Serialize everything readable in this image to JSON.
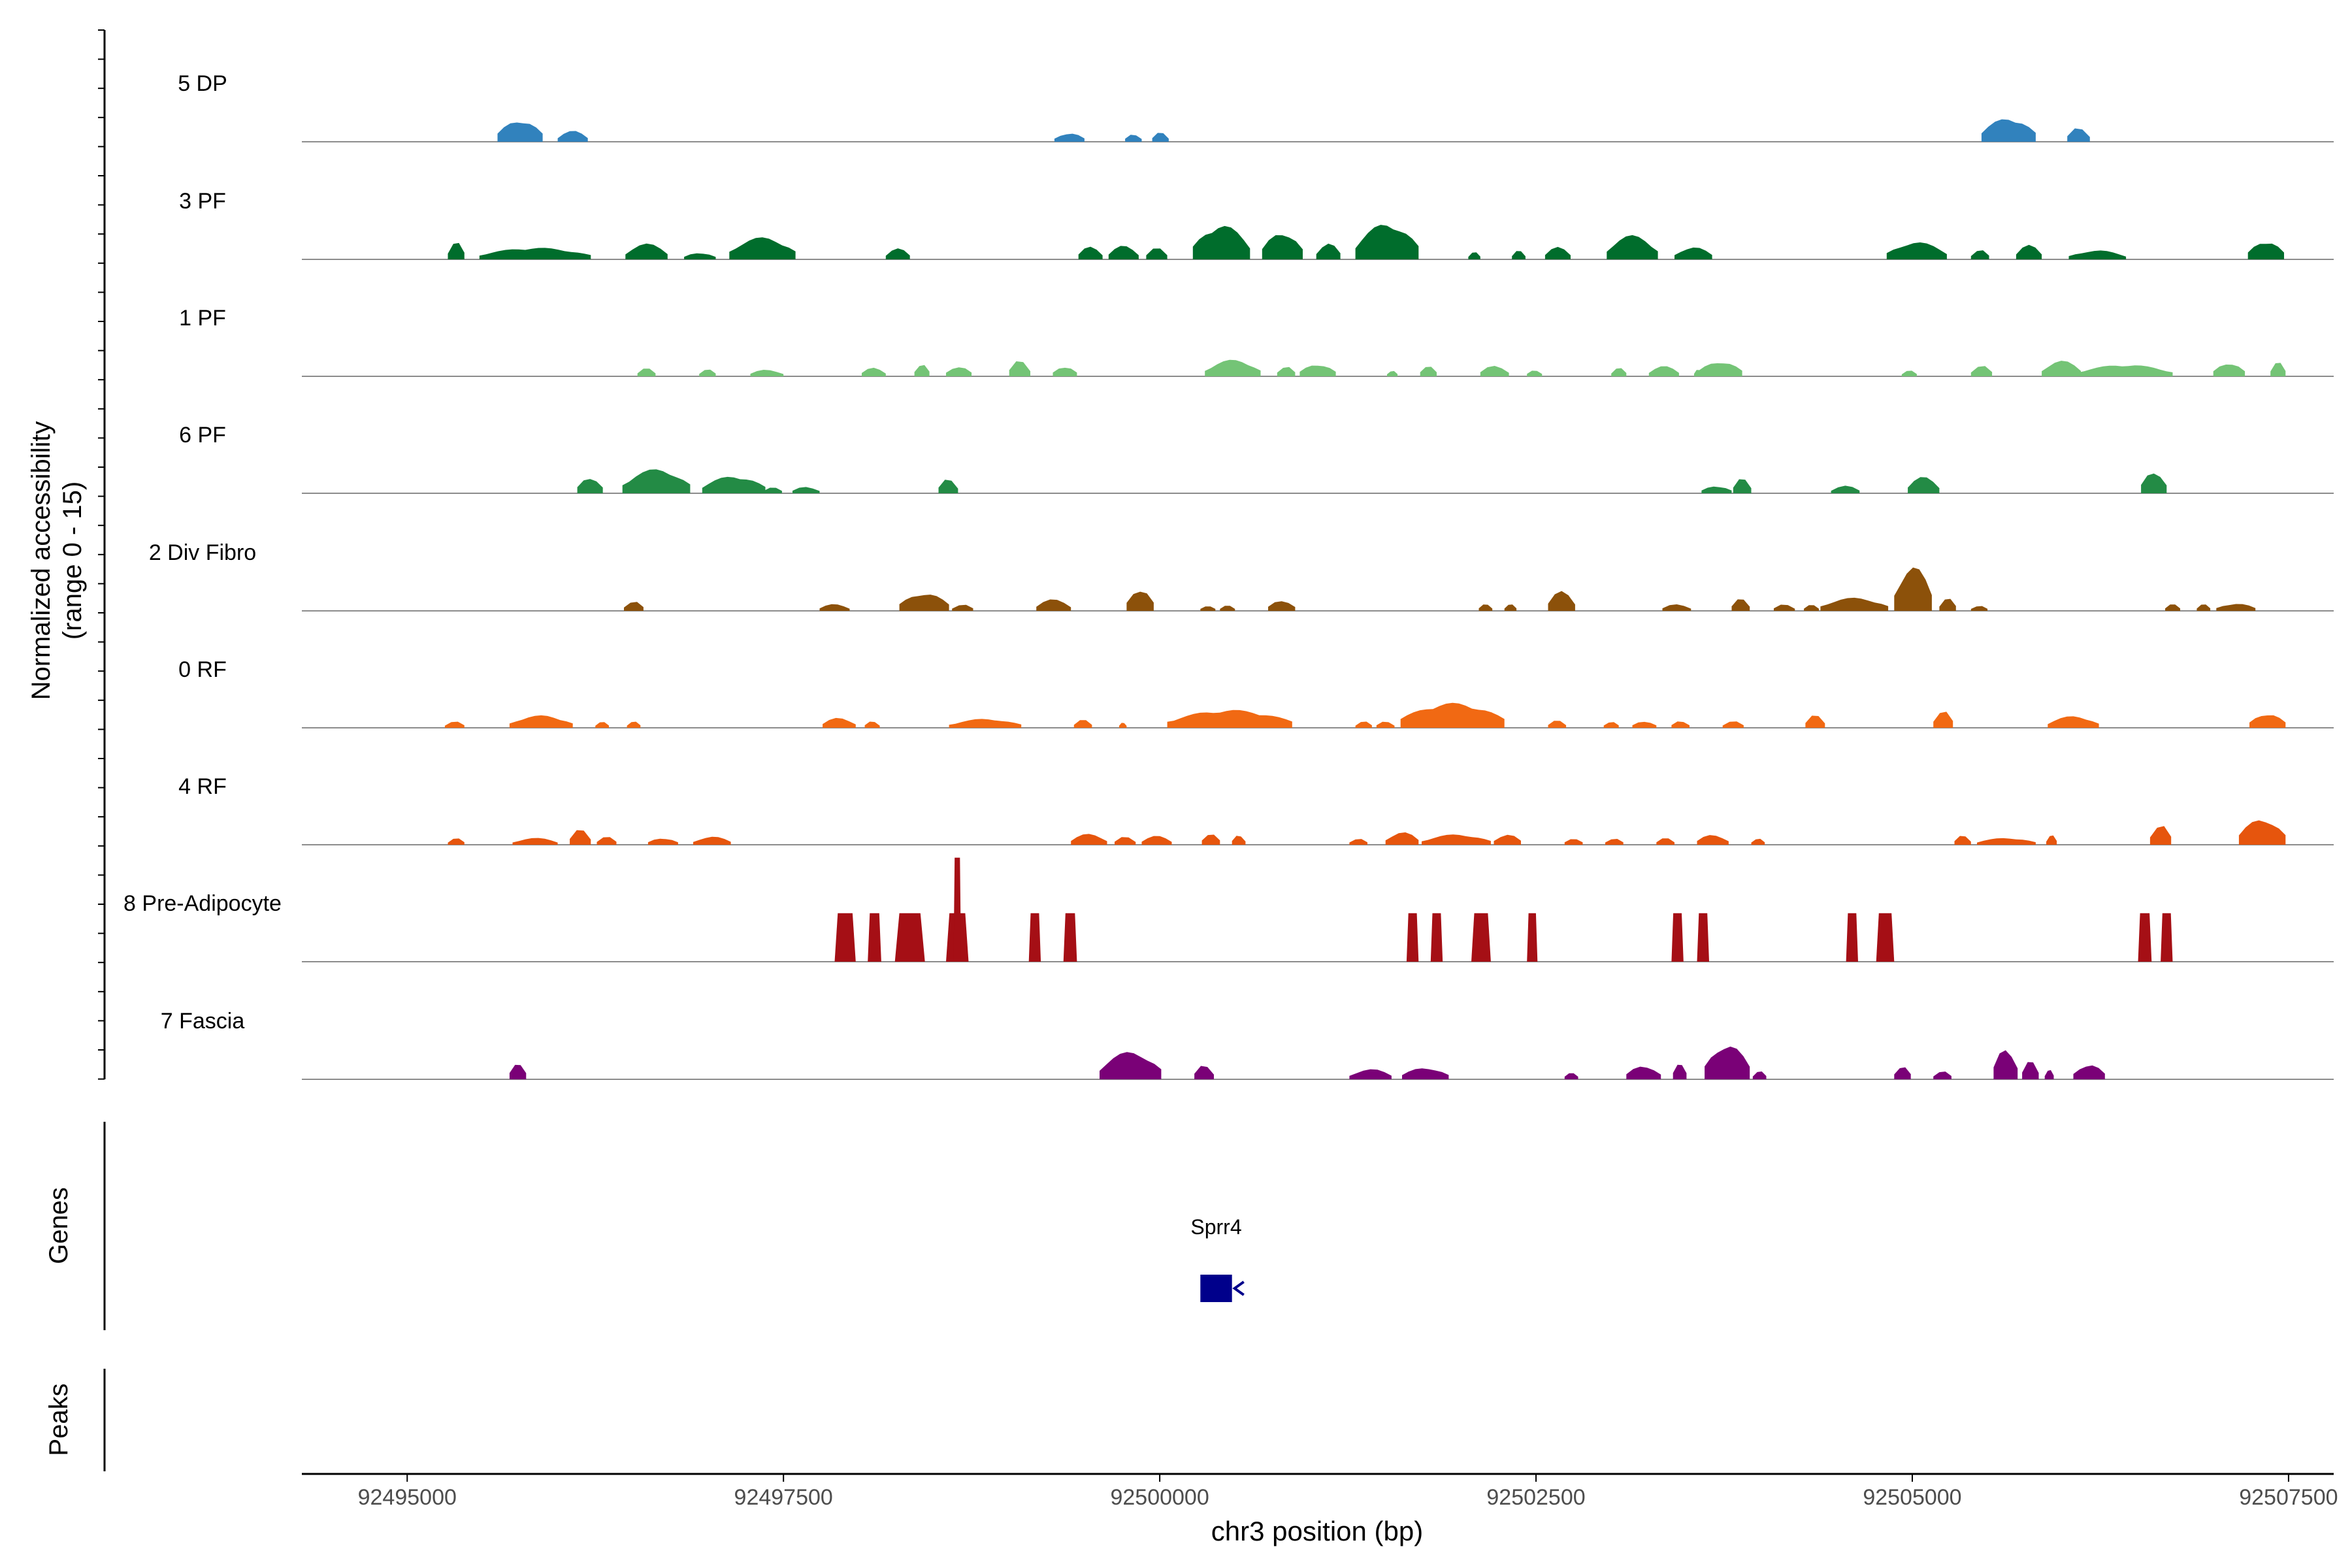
{
  "chart_data": {
    "type": "area",
    "title": "",
    "ylabel_line1": "Normalized accessibility",
    "ylabel_line2": "(range 0 - 15)",
    "xlabel": "chr3 position (bp)",
    "ylim": [
      0,
      15
    ],
    "xlim": [
      92494300,
      92507800
    ],
    "x_ticks": [
      92495000,
      92497500,
      92500000,
      92502500,
      92505000,
      92507500
    ],
    "x_tick_labels": [
      "92495000",
      "92497500",
      "92500000",
      "92502500",
      "92505000",
      "92507500"
    ],
    "genes_label": "Genes",
    "peaks_label": "Peaks",
    "genes": [
      {
        "name": "Sprr4",
        "start": 92500270,
        "end": 92500480,
        "strand": "-",
        "color": "#00008b"
      }
    ],
    "series": [
      {
        "name": "5 DP",
        "color": "#3182bd",
        "peaks": [
          [
            92495600,
            92495900,
            3.2
          ],
          [
            92496000,
            92496200,
            1.6
          ],
          [
            92499300,
            92499500,
            1.3
          ],
          [
            92499770,
            92499880,
            1.2
          ],
          [
            92499950,
            92500060,
            1.4
          ],
          [
            92505460,
            92505820,
            3.5
          ],
          [
            92506030,
            92506180,
            2.2
          ]
        ]
      },
      {
        "name": "3 PF",
        "color": "#006d2c",
        "peaks": [
          [
            92495270,
            92495380,
            2.6
          ],
          [
            92495480,
            92496220,
            1.7
          ],
          [
            92496450,
            92496730,
            2.3
          ],
          [
            92496840,
            92497050,
            1.0
          ],
          [
            92497140,
            92497580,
            3.2
          ],
          [
            92498180,
            92498340,
            1.6
          ],
          [
            92499460,
            92499620,
            1.9
          ],
          [
            92499660,
            92499860,
            2.0
          ],
          [
            92499910,
            92500050,
            1.7
          ],
          [
            92500220,
            92500600,
            5.0
          ],
          [
            92500680,
            92500950,
            4.0
          ],
          [
            92501040,
            92501200,
            2.4
          ],
          [
            92501300,
            92501720,
            5.2
          ],
          [
            92502050,
            92502130,
            1.1
          ],
          [
            92502340,
            92502430,
            1.3
          ],
          [
            92502560,
            92502730,
            1.8
          ],
          [
            92502970,
            92503310,
            3.5
          ],
          [
            92503420,
            92503670,
            1.8
          ],
          [
            92504830,
            92505230,
            2.5
          ],
          [
            92505390,
            92505510,
            1.5
          ],
          [
            92505690,
            92505860,
            2.1
          ],
          [
            92506040,
            92506420,
            1.3
          ],
          [
            92507230,
            92507470,
            2.7
          ]
        ]
      },
      {
        "name": "1 PF",
        "color": "#74c476",
        "peaks": [
          [
            92496530,
            92496650,
            1.2
          ],
          [
            92496940,
            92497050,
            1.1
          ],
          [
            92497280,
            92497500,
            1.0
          ],
          [
            92498020,
            92498180,
            1.3
          ],
          [
            92498370,
            92498470,
            1.9
          ],
          [
            92498580,
            92498750,
            1.5
          ],
          [
            92499000,
            92499140,
            2.4
          ],
          [
            92499290,
            92499450,
            1.5
          ],
          [
            92500300,
            92500670,
            2.4
          ],
          [
            92500780,
            92500900,
            1.6
          ],
          [
            92500930,
            92501170,
            1.8
          ],
          [
            92501510,
            92501580,
            0.9
          ],
          [
            92501730,
            92501840,
            1.7
          ],
          [
            92502130,
            92502320,
            1.6
          ],
          [
            92502440,
            92502540,
            1.0
          ],
          [
            92503000,
            92503100,
            1.3
          ],
          [
            92503250,
            92503450,
            1.5
          ],
          [
            92503550,
            92503600,
            1.0
          ],
          [
            92503580,
            92503870,
            2.2
          ],
          [
            92504930,
            92505030,
            0.9
          ],
          [
            92505390,
            92505530,
            1.7
          ],
          [
            92505860,
            92506120,
            2.3
          ],
          [
            92506100,
            92506730,
            1.7
          ],
          [
            92507000,
            92507210,
            2.0
          ],
          [
            92507380,
            92507480,
            2.1
          ]
        ]
      },
      {
        "name": "6 PF",
        "color": "#238b45",
        "peaks": [
          [
            92496130,
            92496300,
            2.4
          ],
          [
            92496430,
            92496880,
            3.5
          ],
          [
            92496960,
            92497380,
            2.5
          ],
          [
            92497370,
            92497490,
            1.0
          ],
          [
            92497560,
            92497740,
            1.0
          ],
          [
            92498530,
            92498660,
            2.2
          ],
          [
            92503600,
            92503800,
            1.1
          ],
          [
            92503810,
            92503930,
            2.2
          ],
          [
            92504460,
            92504650,
            1.1
          ],
          [
            92504970,
            92505180,
            2.4
          ],
          [
            92506520,
            92506690,
            3.3
          ]
        ]
      },
      {
        "name": "2 Div Fibro",
        "color": "#8c510a",
        "peaks": [
          [
            92496440,
            92496570,
            1.5
          ],
          [
            92497740,
            92497940,
            1.0
          ],
          [
            92498270,
            92498600,
            2.6
          ],
          [
            92498620,
            92498760,
            1.0
          ],
          [
            92499180,
            92499410,
            1.7
          ],
          [
            92499780,
            92499960,
            3.3
          ],
          [
            92500270,
            92500370,
            0.8
          ],
          [
            92500400,
            92500500,
            0.8
          ],
          [
            92500720,
            92500900,
            1.6
          ],
          [
            92502120,
            92502210,
            1.0
          ],
          [
            92502290,
            92502370,
            1.0
          ],
          [
            92502580,
            92502760,
            2.9
          ],
          [
            92503340,
            92503530,
            1.0
          ],
          [
            92503800,
            92503920,
            1.8
          ],
          [
            92504080,
            92504220,
            1.0
          ],
          [
            92504280,
            92504380,
            0.9
          ],
          [
            92504390,
            92504840,
            1.9
          ],
          [
            92504880,
            92505130,
            6.5
          ],
          [
            92505180,
            92505290,
            1.9
          ],
          [
            92505390,
            92505500,
            0.8
          ],
          [
            92506680,
            92506780,
            1.0
          ],
          [
            92506890,
            92506980,
            1.0
          ],
          [
            92507020,
            92507280,
            1.1
          ]
        ]
      },
      {
        "name": "0 RF",
        "color": "#f16913",
        "peaks": [
          [
            92495250,
            92495380,
            1.0
          ],
          [
            92495680,
            92496100,
            1.8
          ],
          [
            92496250,
            92496340,
            0.9
          ],
          [
            92496460,
            92496550,
            1.0
          ],
          [
            92497760,
            92497980,
            1.5
          ],
          [
            92498040,
            92498140,
            1.0
          ],
          [
            92498600,
            92499080,
            1.3
          ],
          [
            92499430,
            92499550,
            1.2
          ],
          [
            92499730,
            92499780,
            0.8
          ],
          [
            92500050,
            92500880,
            2.6
          ],
          [
            92501300,
            92501410,
            1.0
          ],
          [
            92501440,
            92501560,
            1.0
          ],
          [
            92501600,
            92502290,
            3.6
          ],
          [
            92502580,
            92502700,
            1.1
          ],
          [
            92502950,
            92503050,
            1.0
          ],
          [
            92503140,
            92503300,
            1.0
          ],
          [
            92503400,
            92503520,
            1.1
          ],
          [
            92503740,
            92503880,
            1.0
          ],
          [
            92504290,
            92504420,
            1.9
          ],
          [
            92505140,
            92505270,
            2.7
          ],
          [
            92505900,
            92506240,
            1.7
          ],
          [
            92507240,
            92507480,
            2.1
          ]
        ]
      },
      {
        "name": "4 RF",
        "color": "#e6550d",
        "peaks": [
          [
            92495270,
            92495380,
            1.0
          ],
          [
            92495700,
            92496000,
            1.0
          ],
          [
            92496080,
            92496220,
            2.3
          ],
          [
            92496260,
            92496390,
            1.2
          ],
          [
            92496600,
            92496800,
            1.0
          ],
          [
            92496900,
            92497150,
            1.2
          ],
          [
            92499410,
            92499650,
            1.6
          ],
          [
            92499700,
            92499840,
            1.2
          ],
          [
            92499880,
            92500080,
            1.3
          ],
          [
            92500280,
            92500400,
            1.8
          ],
          [
            92500480,
            92500570,
            1.5
          ],
          [
            92501260,
            92501380,
            1.0
          ],
          [
            92501500,
            92501720,
            1.9
          ],
          [
            92501740,
            92502200,
            1.5
          ],
          [
            92502220,
            92502400,
            1.6
          ],
          [
            92502690,
            92502810,
            1.0
          ],
          [
            92502960,
            92503080,
            1.0
          ],
          [
            92503300,
            92503420,
            1.0
          ],
          [
            92503570,
            92503780,
            1.5
          ],
          [
            92503930,
            92504020,
            1.0
          ],
          [
            92505280,
            92505390,
            1.4
          ],
          [
            92505430,
            92505820,
            1.0
          ],
          [
            92505890,
            92505960,
            1.5
          ],
          [
            92506580,
            92506720,
            3.2
          ],
          [
            92507170,
            92507480,
            3.8
          ]
        ]
      },
      {
        "name": "8 Pre-Adipocyte",
        "color": "#a50f15",
        "shape": "bars",
        "peaks": [
          [
            92497840,
            92497980,
            7.0
          ],
          [
            92498060,
            92498150,
            7.0
          ],
          [
            92498240,
            92498440,
            7.0
          ],
          [
            92498580,
            92498730,
            7.0
          ],
          [
            92498630,
            92498680,
            15.0
          ],
          [
            92499130,
            92499210,
            7.0
          ],
          [
            92499360,
            92499450,
            7.0
          ],
          [
            92501640,
            92501720,
            7.0
          ],
          [
            92501800,
            92501880,
            7.0
          ],
          [
            92502070,
            92502200,
            7.0
          ],
          [
            92502440,
            92502510,
            7.0
          ],
          [
            92503400,
            92503480,
            7.0
          ],
          [
            92503570,
            92503650,
            7.0
          ],
          [
            92504560,
            92504640,
            7.0
          ],
          [
            92504760,
            92504880,
            7.0
          ],
          [
            92506500,
            92506590,
            7.0
          ],
          [
            92506650,
            92506730,
            7.0
          ]
        ]
      },
      {
        "name": "7 Fascia",
        "color": "#7a0177",
        "peaks": [
          [
            92495680,
            92495790,
            2.6
          ],
          [
            92499600,
            92500010,
            4.0
          ],
          [
            92500230,
            92500360,
            2.2
          ],
          [
            92501260,
            92501540,
            1.5
          ],
          [
            92501610,
            92501920,
            1.7
          ],
          [
            92502690,
            92502780,
            1.1
          ],
          [
            92503100,
            92503330,
            2.0
          ],
          [
            92503410,
            92503500,
            2.6
          ],
          [
            92503620,
            92503920,
            5.1
          ],
          [
            92503940,
            92504030,
            1.3
          ],
          [
            92504880,
            92504990,
            2.1
          ],
          [
            92505140,
            92505260,
            1.3
          ],
          [
            92505540,
            92505700,
            4.7
          ],
          [
            92505730,
            92505840,
            2.7
          ],
          [
            92505880,
            92505940,
            1.5
          ],
          [
            92506070,
            92506280,
            2.2
          ]
        ]
      }
    ]
  }
}
